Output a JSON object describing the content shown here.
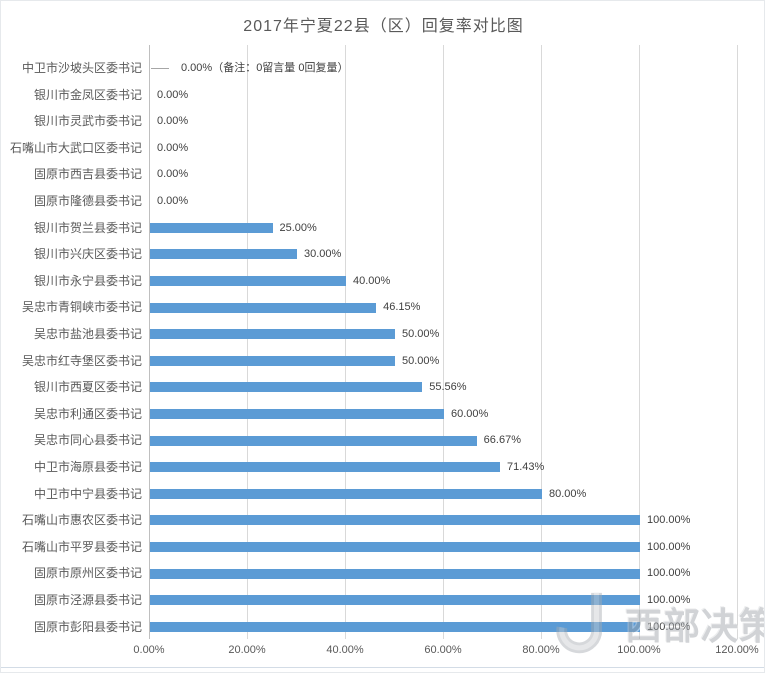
{
  "page": {
    "title": "2017年宁夏22县（区）回复率对比图"
  },
  "chart_data": {
    "type": "bar",
    "orientation": "horizontal",
    "title": "2017年宁夏22县（区）回复率对比图",
    "categories": [
      "中卫市沙坡头区委书记",
      "银川市金凤区委书记",
      "银川市灵武市委书记",
      "石嘴山市大武口区委书记",
      "固原市西吉县委书记",
      "固原市隆德县委书记",
      "银川市贺兰县委书记",
      "银川市兴庆区委书记",
      "银川市永宁县委书记",
      "吴忠市青铜峡市委书记",
      "吴忠市盐池县委书记",
      "吴忠市红寺堡区委书记",
      "银川市西夏区委书记",
      "吴忠市利通区委书记",
      "吴忠市同心县委书记",
      "中卫市海原县委书记",
      "中卫市中宁县委书记",
      "石嘴山市惠农区委书记",
      "石嘴山市平罗县委书记",
      "固原市原州区委书记",
      "固原市泾源县委书记",
      "固原市彭阳县委书记"
    ],
    "values": [
      0,
      0,
      0,
      0,
      0,
      0,
      25,
      30,
      40,
      46.15,
      50,
      50,
      55.56,
      60,
      66.67,
      71.43,
      80,
      100,
      100,
      100,
      100,
      100
    ],
    "data_labels": [
      "0.00%（备注：0留言量 0回复量）",
      "0.00%",
      "0.00%",
      "0.00%",
      "0.00%",
      "0.00%",
      "25.00%",
      "30.00%",
      "40.00%",
      "46.15%",
      "50.00%",
      "50.00%",
      "55.56%",
      "60.00%",
      "66.67%",
      "71.43%",
      "80.00%",
      "100.00%",
      "100.00%",
      "100.00%",
      "100.00%",
      "100.00%"
    ],
    "xlim": [
      0,
      120
    ],
    "x_ticks": [
      "0.00%",
      "20.00%",
      "40.00%",
      "60.00%",
      "80.00%",
      "100.00%",
      "120.00%"
    ],
    "bar_color": "#5b9bd5",
    "gridline_color": "#d9d9d9",
    "axis_line_color": "#bfbfbf",
    "grid": "vertical",
    "legend": "none"
  },
  "watermark": {
    "logo": "j-swirl-logo",
    "text": "西部决策网"
  }
}
